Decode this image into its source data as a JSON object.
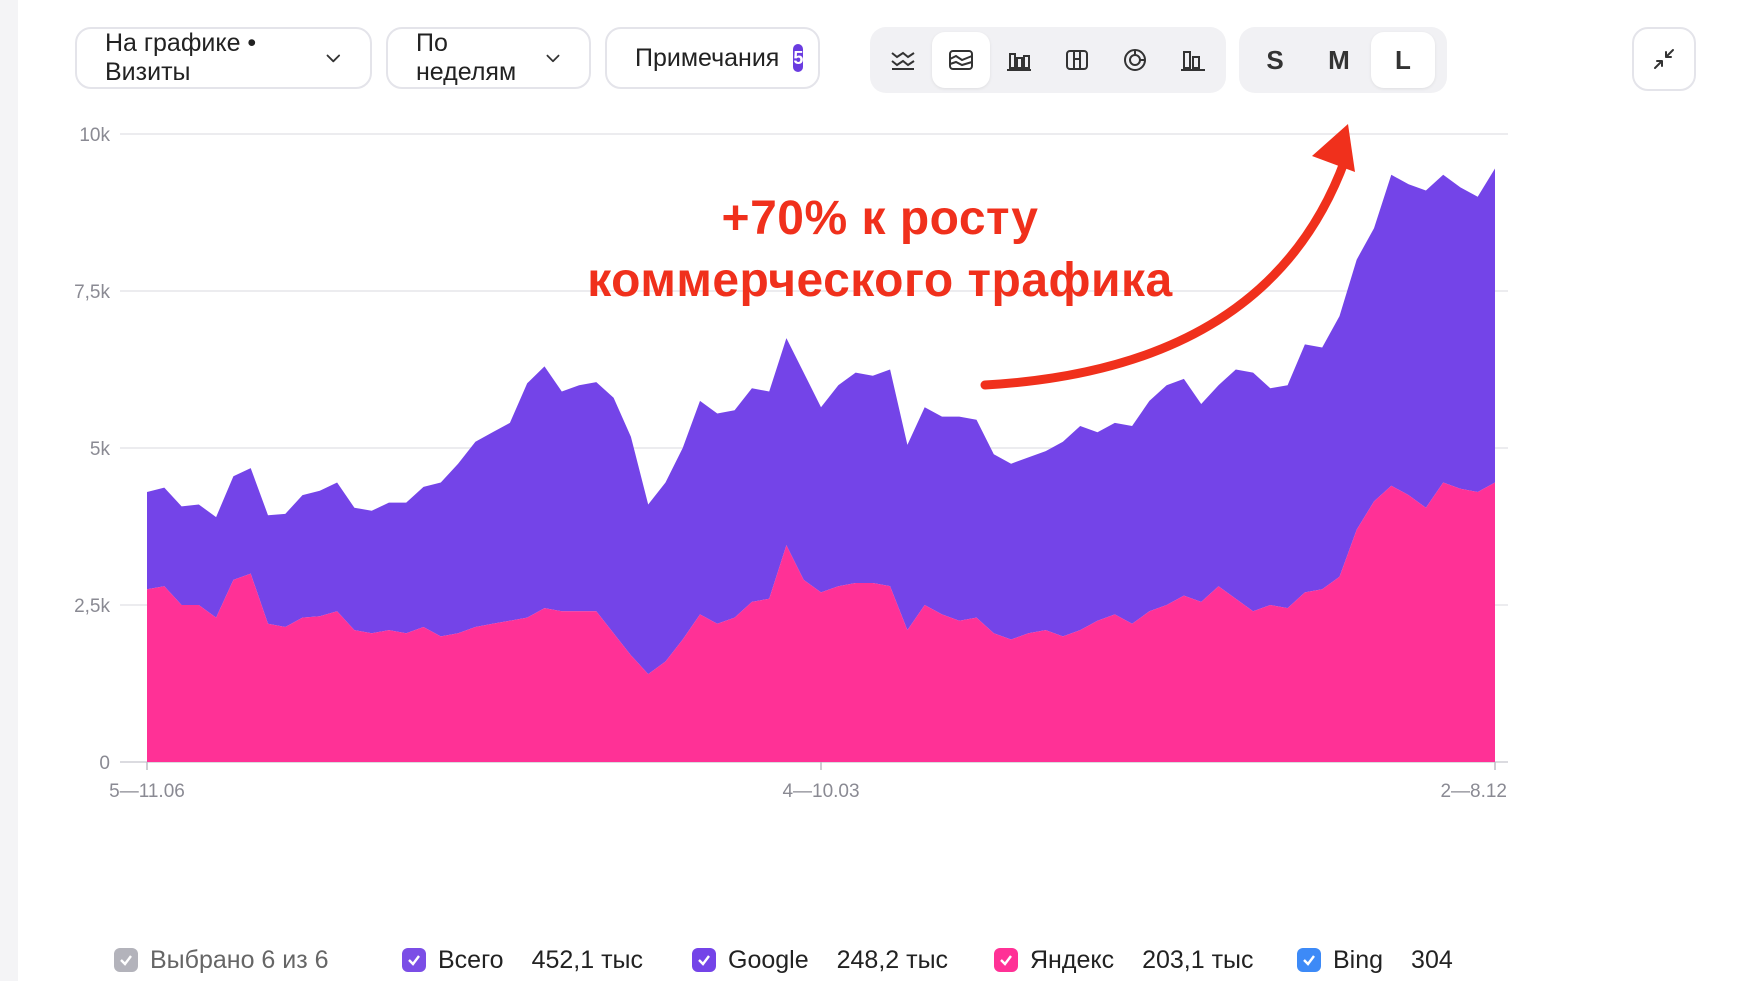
{
  "toolbar": {
    "metric_dropdown": "На графике • Визиты",
    "period_dropdown": "По неделям",
    "notes_label": "Примечания",
    "notes_count": "5",
    "chart_type_icons": [
      "lines-icon",
      "stacked-area-icon",
      "bar-icon",
      "stacked-bar-icon",
      "pie-icon",
      "column-icon"
    ],
    "active_chart_type": 1,
    "sizes": [
      "S",
      "M",
      "L"
    ],
    "active_size": "L",
    "collapse_icon": "collapse-icon"
  },
  "annotation": {
    "line1": "+70% к росту",
    "line2": "коммерческого трафика",
    "color": "#f0301c"
  },
  "legend": {
    "selected": "Выбрано 6 из 6",
    "items": [
      {
        "name": "Всего",
        "value": "452,1 тыс",
        "color": "#7b4ee6"
      },
      {
        "name": "Google",
        "value": "248,2 тыс",
        "color": "#7444e8"
      },
      {
        "name": "Яндекс",
        "value": "203,1 тыс",
        "color": "#ff3196"
      },
      {
        "name": "Bing",
        "value": "304",
        "color": "#3d8af7"
      }
    ]
  },
  "chart_data": {
    "type": "area",
    "stacked": true,
    "ylim": [
      0,
      10000
    ],
    "yticks": [
      0,
      2500,
      5000,
      7500,
      10000
    ],
    "ytick_labels": [
      "0",
      "2,5k",
      "5k",
      "7,5k",
      "10k"
    ],
    "x_tick_labels": [
      {
        "index": 0,
        "label": "5—11.06"
      },
      {
        "index": 39,
        "label": "4—10.03"
      },
      {
        "index": 78,
        "label": "2—8.12"
      }
    ],
    "grid": true,
    "colors": {
      "google": "#7444e8",
      "yandex": "#ff3196"
    },
    "series": [
      {
        "name": "Яндекс",
        "values": [
          2750,
          2800,
          2500,
          2500,
          2300,
          2900,
          3000,
          2200,
          2150,
          2300,
          2320,
          2400,
          2100,
          2050,
          2100,
          2050,
          2150,
          2000,
          2050,
          2150,
          2200,
          2250,
          2300,
          2450,
          2400,
          2400,
          2400,
          2050,
          1700,
          1400,
          1600,
          1950,
          2350,
          2200,
          2300,
          2550,
          2600,
          3450,
          2900,
          2700,
          2800,
          2850,
          2850,
          2800,
          2100,
          2500,
          2350,
          2250,
          2300,
          2050,
          1950,
          2050,
          2100,
          2000,
          2100,
          2250,
          2350,
          2200,
          2400,
          2500,
          2650,
          2550,
          2800,
          2600,
          2400,
          2500,
          2450,
          2700,
          2750,
          2950,
          3700,
          4150,
          4400,
          4250,
          4050,
          4450,
          4350,
          4300,
          4450
        ]
      },
      {
        "name": "Google",
        "values": [
          1550,
          1570,
          1570,
          1600,
          1600,
          1650,
          1680,
          1730,
          1800,
          1950,
          2000,
          2050,
          1950,
          1950,
          2030,
          2080,
          2230,
          2450,
          2700,
          2950,
          3050,
          3150,
          3730,
          3850,
          3500,
          3600,
          3650,
          3750,
          3480,
          2700,
          2850,
          3050,
          3400,
          3350,
          3300,
          3400,
          3300,
          3300,
          3300,
          2950,
          3200,
          3350,
          3300,
          3450,
          2950,
          3150,
          3150,
          3250,
          3150,
          2850,
          2800,
          2800,
          2850,
          3100,
          3250,
          3000,
          3050,
          3150,
          3350,
          3500,
          3450,
          3150,
          3200,
          3650,
          3800,
          3450,
          3550,
          3950,
          3850,
          4150,
          4300,
          4350,
          4950,
          4950,
          5050,
          4900,
          4800,
          4700,
          5000
        ]
      }
    ]
  }
}
